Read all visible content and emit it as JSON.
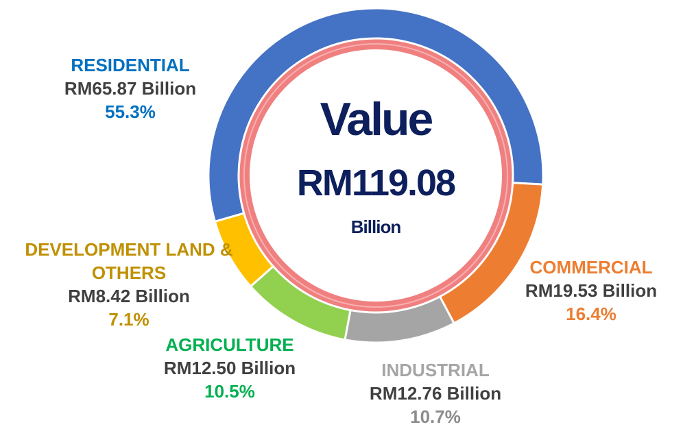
{
  "chart_data": {
    "type": "donut",
    "center_title": "Value",
    "center_value": "RM119.08",
    "center_unit": "Billion",
    "categories": [
      "RESIDENTIAL",
      "COMMERCIAL",
      "INDUSTRIAL",
      "AGRICULTURE",
      "DEVELOPMENT LAND & OTHERS"
    ],
    "values": [
      55.3,
      16.4,
      10.7,
      10.5,
      7.1
    ],
    "value_labels": [
      "55.3%",
      "16.4%",
      "10.7%",
      "10.5%",
      "7.1%"
    ],
    "amounts": [
      "RM65.87 Billion",
      "RM19.53 Billion",
      "RM12.76 Billion",
      "RM12.50 Billion",
      "RM8.42 Billion"
    ],
    "colors": [
      "#4472c4",
      "#ed7d31",
      "#a5a5a5",
      "#92d050",
      "#ffc000"
    ],
    "label_colors": [
      "#0070c0",
      "#ed7d31",
      "#a5a5a5",
      "#00b050",
      "#bf9000"
    ]
  }
}
